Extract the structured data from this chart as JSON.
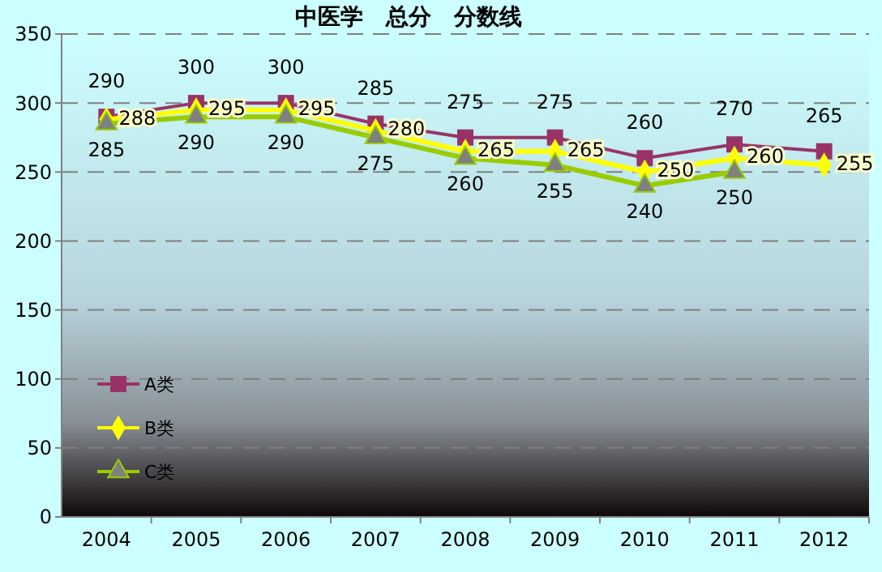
{
  "chart_data": {
    "type": "line",
    "title": "中医学　总分　分数线",
    "categories": [
      "2004",
      "2005",
      "2006",
      "2007",
      "2008",
      "2009",
      "2010",
      "2011",
      "2012"
    ],
    "series": [
      {
        "name": "A类",
        "color": "#993366",
        "marker": "square",
        "values": [
          290,
          300,
          300,
          285,
          275,
          275,
          260,
          270,
          265
        ]
      },
      {
        "name": "B类",
        "color": "#ffff00",
        "marker": "diamond",
        "values": [
          288,
          295,
          295,
          280,
          265,
          265,
          250,
          260,
          255
        ]
      },
      {
        "name": "C类",
        "color": "#99cc00",
        "marker": "triangle",
        "values": [
          285,
          290,
          290,
          275,
          260,
          255,
          240,
          250,
          null
        ]
      }
    ],
    "ylim": [
      0,
      350
    ],
    "yticks": [
      0,
      50,
      100,
      150,
      200,
      250,
      300,
      350
    ],
    "grid": "y",
    "legend": "bottom left",
    "data_labels": true
  }
}
